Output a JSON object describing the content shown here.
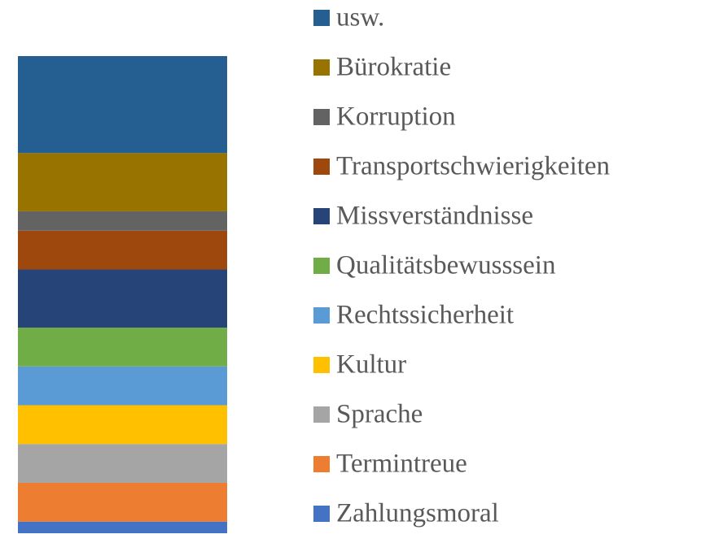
{
  "chart_data": {
    "type": "stacked-bar",
    "series": [
      {
        "name": "Zahlungsmoral",
        "color": "#4472c4",
        "values": [
          0.6
        ]
      },
      {
        "name": "Termintreue",
        "color": "#ed7d31",
        "values": [
          2
        ]
      },
      {
        "name": "Sprache",
        "color": "#a5a5a5",
        "values": [
          2
        ]
      },
      {
        "name": "Kultur",
        "color": "#ffc000",
        "values": [
          2
        ]
      },
      {
        "name": "Rechtssicherheit",
        "color": "#5b9bd5",
        "values": [
          2
        ]
      },
      {
        "name": "Qualitätsbewusssein",
        "color": "#70ad47",
        "values": [
          2
        ]
      },
      {
        "name": "Missverständnisse",
        "color": "#264478",
        "values": [
          3
        ]
      },
      {
        "name": "Transportschwierigkeiten",
        "color": "#9e480e",
        "values": [
          2
        ]
      },
      {
        "name": "Korruption",
        "color": "#636363",
        "values": [
          1
        ]
      },
      {
        "name": "Bürokratie",
        "color": "#997300",
        "values": [
          3
        ]
      },
      {
        "name": "usw.",
        "color": "#255e91",
        "values": [
          5
        ]
      }
    ]
  }
}
